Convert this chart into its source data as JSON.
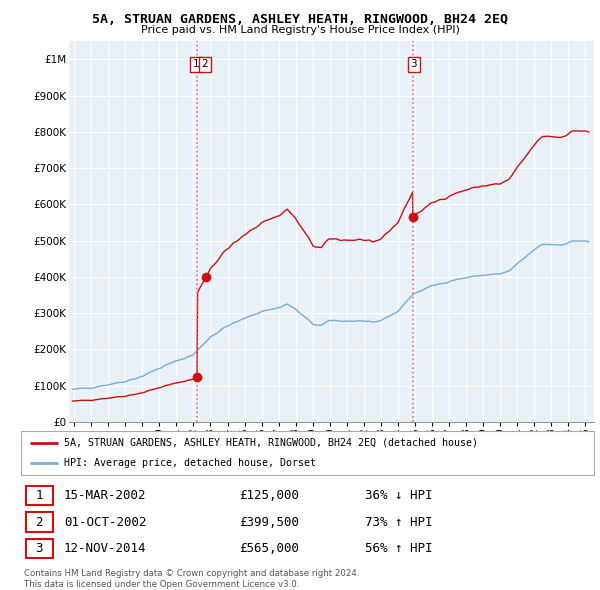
{
  "title": "5A, STRUAN GARDENS, ASHLEY HEATH, RINGWOOD, BH24 2EQ",
  "subtitle": "Price paid vs. HM Land Registry's House Price Index (HPI)",
  "ylim": [
    0,
    1050000
  ],
  "yticks": [
    0,
    100000,
    200000,
    300000,
    400000,
    500000,
    600000,
    700000,
    800000,
    900000,
    1000000
  ],
  "ytick_labels": [
    "£0",
    "£100K",
    "£200K",
    "£300K",
    "£400K",
    "£500K",
    "£600K",
    "£700K",
    "£800K",
    "£900K",
    "£1M"
  ],
  "xlim_start": 1994.7,
  "xlim_end": 2025.5,
  "xtick_years": [
    1995,
    1996,
    1997,
    1998,
    1999,
    2000,
    2001,
    2002,
    2003,
    2004,
    2005,
    2006,
    2007,
    2008,
    2009,
    2010,
    2011,
    2012,
    2013,
    2014,
    2015,
    2016,
    2017,
    2018,
    2019,
    2020,
    2021,
    2022,
    2023,
    2024,
    2025
  ],
  "sale1_date": 2002.21,
  "sale2_date": 2002.75,
  "sale3_date": 2014.87,
  "sale1_price": 125000,
  "sale2_price": 399500,
  "sale3_price": 565000,
  "vline_color": "#e87878",
  "red_line_color": "#cc1111",
  "blue_line_color": "#7aaed6",
  "bg_shade_color": "#e8f0f8",
  "legend_label_red": "5A, STRUAN GARDENS, ASHLEY HEATH, RINGWOOD, BH24 2EQ (detached house)",
  "legend_label_blue": "HPI: Average price, detached house, Dorset",
  "table_rows": [
    [
      "1",
      "15-MAR-2002",
      "£125,000",
      "36% ↓ HPI"
    ],
    [
      "2",
      "01-OCT-2002",
      "£399,500",
      "73% ↑ HPI"
    ],
    [
      "3",
      "12-NOV-2014",
      "£565,000",
      "56% ↑ HPI"
    ]
  ],
  "footnote": "Contains HM Land Registry data © Crown copyright and database right 2024.\nThis data is licensed under the Open Government Licence v3.0."
}
